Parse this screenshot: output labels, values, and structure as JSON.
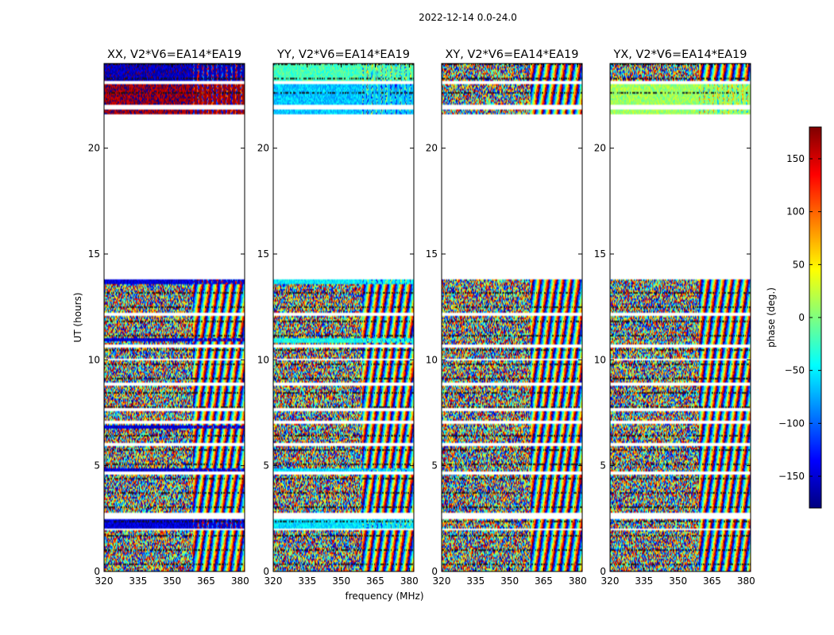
{
  "chart_data": {
    "type": "heatmap",
    "suptitle": "2022-12-14 0.0-24.0",
    "xlabel": "frequency (MHz)",
    "ylabel": "UT (hours)",
    "xlim": [
      320,
      382
    ],
    "ylim": [
      0,
      24
    ],
    "xticks": [
      320,
      335,
      350,
      365,
      380
    ],
    "yticks": [
      0,
      5,
      10,
      15,
      20
    ],
    "colorbar": {
      "label": "phase (deg.)",
      "range": [
        -180,
        180
      ],
      "ticks": [
        150,
        100,
        50,
        0,
        -50,
        -100,
        -150
      ],
      "tick_labels": [
        "150",
        "100",
        "50",
        "0",
        "−50",
        "−100",
        "−150"
      ],
      "colormap": [
        "#00007f",
        "#0000ff",
        "#007fff",
        "#00ffff",
        "#7fff7f",
        "#ffff00",
        "#ff7f00",
        "#ff0000",
        "#7f0000"
      ]
    },
    "data_segments_hours": [
      [
        0.0,
        1.95
      ],
      [
        2.0,
        2.45
      ],
      [
        2.8,
        4.6
      ],
      [
        4.7,
        5.95
      ],
      [
        6.1,
        7.0
      ],
      [
        7.1,
        7.55
      ],
      [
        7.7,
        8.8
      ],
      [
        8.9,
        9.95
      ],
      [
        10.05,
        10.6
      ],
      [
        10.75,
        12.1
      ],
      [
        12.2,
        13.8
      ],
      [
        21.6,
        21.85
      ],
      [
        22.05,
        23.0
      ],
      [
        23.15,
        24.0
      ]
    ],
    "panels": [
      {
        "title": "XX, V2*V6=EA14*EA19",
        "mean_phase_deg": 170,
        "biased_segments": [
          {
            "range_hours": [
              21.6,
              23.0
            ],
            "phase_deg": 170
          },
          {
            "range_hours": [
              13.55,
              13.8
            ],
            "phase_deg": -150
          },
          {
            "range_hours": [
              10.9,
              11.0
            ],
            "phase_deg": -150
          },
          {
            "range_hours": [
              6.75,
              6.9
            ],
            "phase_deg": -150
          },
          {
            "range_hours": [
              4.7,
              4.9
            ],
            "phase_deg": -150
          },
          {
            "range_hours": [
              2.0,
              2.45
            ],
            "phase_deg": -150
          },
          {
            "range_hours": [
              23.15,
              24.0
            ],
            "phase_deg": -160
          }
        ]
      },
      {
        "title": "YY, V2*V6=EA14*EA19",
        "mean_phase_deg": -60,
        "biased_segments": [
          {
            "range_hours": [
              21.6,
              23.0
            ],
            "phase_deg": -65
          },
          {
            "range_hours": [
              23.15,
              24.0
            ],
            "phase_deg": -20
          },
          {
            "range_hours": [
              13.55,
              13.8
            ],
            "phase_deg": -50
          },
          {
            "range_hours": [
              10.8,
              11.0
            ],
            "phase_deg": -40
          },
          {
            "range_hours": [
              4.7,
              4.9
            ],
            "phase_deg": -60
          },
          {
            "range_hours": [
              2.0,
              2.45
            ],
            "phase_deg": -55
          }
        ]
      },
      {
        "title": "XY, V2*V6=EA14*EA19",
        "mean_phase_deg": 0,
        "biased_segments": []
      },
      {
        "title": "YX, V2*V6=EA14*EA19",
        "mean_phase_deg": 0,
        "biased_segments": [
          {
            "range_hours": [
              21.6,
              23.0
            ],
            "phase_deg": 10
          }
        ]
      }
    ]
  }
}
